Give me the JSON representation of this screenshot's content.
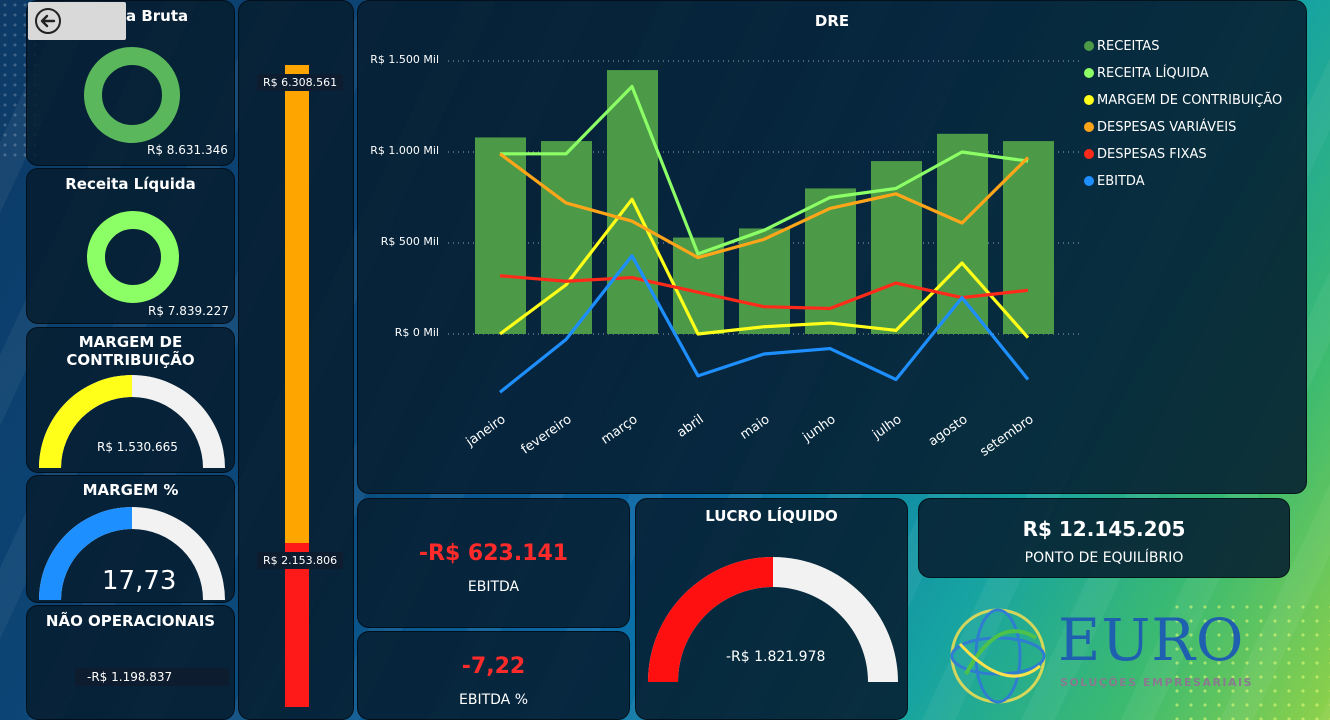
{
  "nav": {
    "back_icon": "back-arrow-icon"
  },
  "cards": {
    "receita_bruta": {
      "title": "Receita Bruta",
      "value": "R$ 8.631.346",
      "color": "#5bb75b"
    },
    "receita_liquida": {
      "title": "Receita Líquida",
      "value": "R$ 7.839.227",
      "color": "#8cff66"
    },
    "margem_contribuicao": {
      "title_line1": "MARGEM DE",
      "title_line2": "CONTRIBUIÇÃO",
      "value": "R$ 1.530.665",
      "fill_fraction": 0.5,
      "color": "#ffff1a"
    },
    "margem_pct": {
      "title": "MARGEM %",
      "value": "17,73",
      "fill_fraction": 0.5,
      "color": "#1e8fff"
    },
    "nao_operacionais": {
      "title": "NÃO OPERACIONAIS",
      "value": "-R$ 1.198.837"
    },
    "ebitda": {
      "value": "-R$ 623.141",
      "label": "EBITDA"
    },
    "ebitda_pct": {
      "value": "-7,22",
      "label": "EBITDA %"
    },
    "lucro_liquido": {
      "title": "LUCRO LÍQUIDO",
      "value": "-R$ 1.821.978",
      "fill_fraction": 0.5,
      "color": "#ff1010"
    },
    "ponto_equilibrio": {
      "value": "R$ 12.145.205",
      "label": "PONTO DE EQUILÍBRIO"
    }
  },
  "vertical_bar": {
    "top_label": "R$ 6.308.561",
    "bottom_label": "R$ 2.153.806",
    "orange_color": "#ffa500",
    "red_color": "#ff1a1a"
  },
  "brand": {
    "name": "EURO",
    "tagline": "SOLUÇÕES EMPRESARIAIS"
  },
  "chart_data": {
    "type": "bar",
    "title": "DRE",
    "categories": [
      "janeiro",
      "fevereiro",
      "março",
      "abril",
      "maio",
      "junho",
      "julho",
      "agosto",
      "setembro"
    ],
    "ylim": [
      0,
      1500
    ],
    "ytick_labels": [
      "R$ 0 Mil",
      "R$ 500 Mil",
      "R$ 1.000 Mil",
      "R$ 1.500 Mil"
    ],
    "ytick_values": [
      0,
      500,
      1000,
      1500
    ],
    "series": [
      {
        "name": "RECEITAS",
        "kind": "bar",
        "color": "#4c9a47",
        "values": [
          1080,
          1060,
          1450,
          530,
          580,
          800,
          950,
          1100,
          1060
        ]
      },
      {
        "name": "RECEITA LÍQUIDA",
        "kind": "line",
        "color": "#8cff66",
        "values": [
          990,
          990,
          1360,
          440,
          570,
          750,
          800,
          1000,
          950
        ]
      },
      {
        "name": "MARGEM DE CONTRIBUIÇÃO",
        "kind": "line",
        "color": "#ffff1a",
        "values": [
          0,
          270,
          740,
          0,
          40,
          60,
          20,
          390,
          -20
        ]
      },
      {
        "name": "DESPESAS VARIÁVEIS",
        "kind": "line",
        "color": "#ffa51a",
        "values": [
          990,
          720,
          620,
          420,
          520,
          690,
          770,
          610,
          970
        ]
      },
      {
        "name": "DESPESAS FIXAS",
        "kind": "line",
        "color": "#ff2a1a",
        "values": [
          320,
          290,
          310,
          230,
          150,
          140,
          280,
          200,
          240
        ]
      },
      {
        "name": "EBITDA",
        "kind": "line",
        "color": "#1e8fff",
        "values": [
          -320,
          -30,
          430,
          -230,
          -110,
          -80,
          -250,
          200,
          -250
        ]
      }
    ]
  }
}
